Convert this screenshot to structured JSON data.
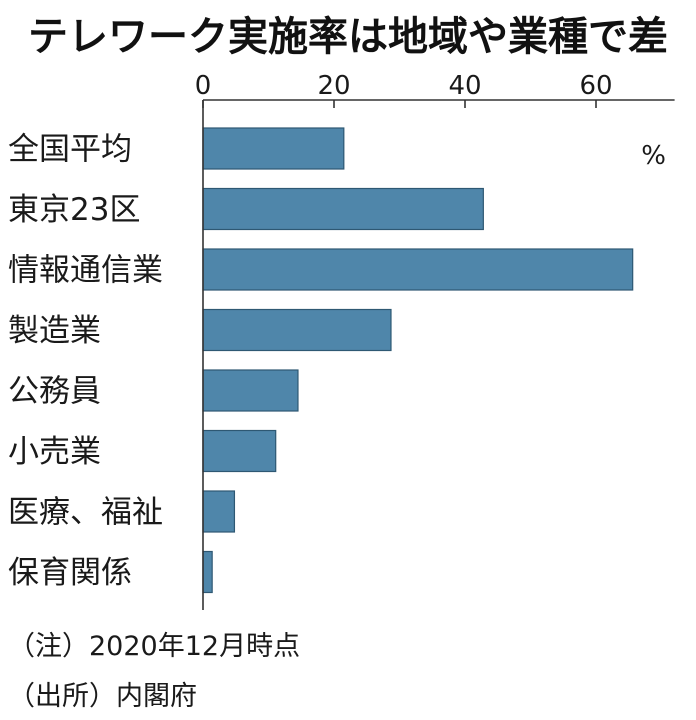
{
  "colors": {
    "bar": "#4f86aa",
    "bar_stroke": "#2e5873",
    "axis": "#333333",
    "text": "#1a1a1a"
  },
  "chart_data": {
    "type": "bar",
    "orientation": "horizontal",
    "title": "テレワーク実施率は地域や業種で差",
    "unit": "%",
    "categories": [
      "全国平均",
      "東京23区",
      "情報通信業",
      "製造業",
      "公務員",
      "小売業",
      "医療、福祉",
      "保育関係"
    ],
    "values": [
      21.5,
      42.8,
      65.6,
      28.7,
      14.5,
      11.1,
      4.8,
      1.4
    ],
    "xticks": [
      0,
      20,
      40,
      60
    ],
    "xlim": [
      0,
      72
    ],
    "legend": "none",
    "grid": false
  },
  "notes": {
    "note1": "（注）2020年12月時点",
    "source": "（出所）内閣府"
  }
}
